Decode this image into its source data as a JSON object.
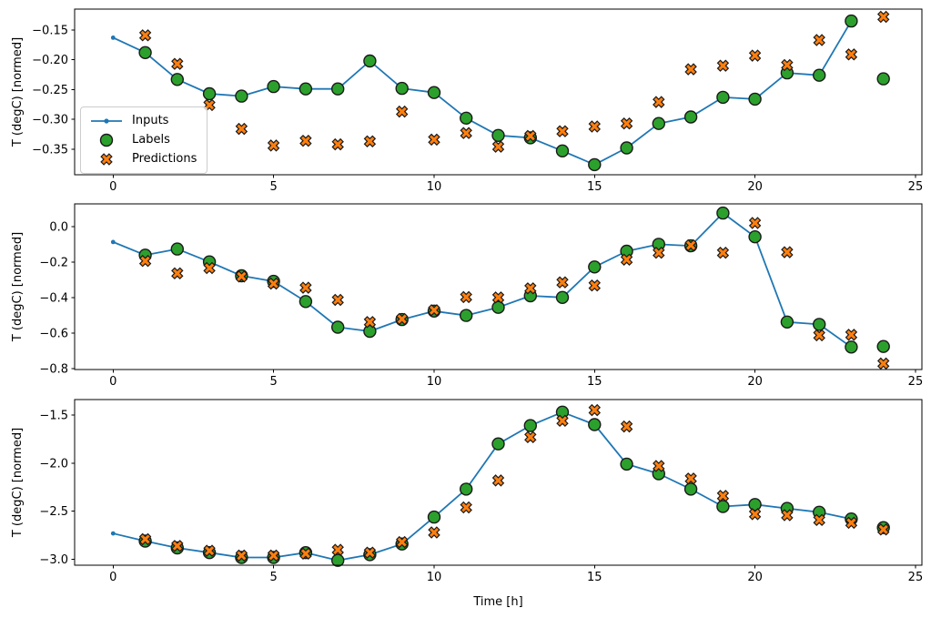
{
  "figure": {
    "background": "#ffffff",
    "xlabel": "Time [h]",
    "ylabel": "T (degC) [normed]",
    "colors": {
      "inputs": "#1f77b4",
      "labels": "#2ca02c",
      "predictions": "#ff7f0e",
      "marker_edge": "#1a1a1a",
      "spine": "#000000",
      "text": "#000000"
    },
    "legend": {
      "items": [
        {
          "label": "Inputs",
          "marker": "line-dot",
          "color": "#1f77b4"
        },
        {
          "label": "Labels",
          "marker": "circle",
          "color": "#2ca02c"
        },
        {
          "label": "Predictions",
          "marker": "x",
          "color": "#ff7f0e"
        }
      ]
    }
  },
  "chart_data": [
    {
      "type": "line",
      "ylabel": "T (degC) [normed]",
      "xlabel": "",
      "xlim": [
        -1.2,
        25.2
      ],
      "ylim": [
        -0.393,
        -0.115
      ],
      "xticks": [
        0,
        5,
        10,
        15,
        20,
        25
      ],
      "xtick_labels": [
        "0",
        "5",
        "10",
        "15",
        "20",
        "25"
      ],
      "yticks": [
        -0.15,
        -0.2,
        -0.25,
        -0.3,
        -0.35
      ],
      "ytick_labels": [
        "−0.15",
        "−0.20",
        "−0.25",
        "−0.30",
        "−0.35"
      ],
      "legend": true,
      "series": [
        {
          "name": "Inputs",
          "marker": "line-dot",
          "color": "#1f77b4",
          "x": [
            0,
            1,
            2,
            3,
            4,
            5,
            6,
            7,
            8,
            9,
            10,
            11,
            12,
            13,
            14,
            15,
            16,
            17,
            18,
            19,
            20,
            21,
            22,
            23
          ],
          "y": [
            -0.163,
            -0.188,
            -0.233,
            -0.257,
            -0.261,
            -0.245,
            -0.249,
            -0.249,
            -0.202,
            -0.248,
            -0.255,
            -0.298,
            -0.327,
            -0.331,
            -0.353,
            -0.376,
            -0.348,
            -0.307,
            -0.296,
            -0.263,
            -0.266,
            -0.222,
            -0.226,
            -0.135
          ]
        },
        {
          "name": "Labels",
          "marker": "circle",
          "color": "#2ca02c",
          "x": [
            1,
            2,
            3,
            4,
            5,
            6,
            7,
            8,
            9,
            10,
            11,
            12,
            13,
            14,
            15,
            16,
            17,
            18,
            19,
            20,
            21,
            22,
            23,
            24
          ],
          "y": [
            -0.188,
            -0.233,
            -0.257,
            -0.261,
            -0.245,
            -0.249,
            -0.249,
            -0.202,
            -0.248,
            -0.255,
            -0.298,
            -0.327,
            -0.331,
            -0.353,
            -0.376,
            -0.348,
            -0.307,
            -0.296,
            -0.263,
            -0.266,
            -0.222,
            -0.226,
            -0.135,
            -0.232
          ]
        },
        {
          "name": "Predictions",
          "marker": "x",
          "color": "#ff7f0e",
          "x": [
            1,
            2,
            3,
            4,
            5,
            6,
            7,
            8,
            9,
            10,
            11,
            12,
            13,
            14,
            15,
            16,
            17,
            18,
            19,
            20,
            21,
            22,
            23,
            24
          ],
          "y": [
            -0.159,
            -0.207,
            -0.276,
            -0.316,
            -0.344,
            -0.336,
            -0.342,
            -0.337,
            -0.287,
            -0.334,
            -0.323,
            -0.346,
            -0.328,
            -0.32,
            -0.312,
            -0.307,
            -0.271,
            -0.216,
            -0.21,
            -0.193,
            -0.209,
            -0.167,
            -0.191,
            -0.128
          ]
        }
      ]
    },
    {
      "type": "line",
      "ylabel": "T (degC) [normed]",
      "xlabel": "",
      "xlim": [
        -1.2,
        25.2
      ],
      "ylim": [
        -0.806,
        0.129
      ],
      "xticks": [
        0,
        5,
        10,
        15,
        20,
        25
      ],
      "xtick_labels": [
        "0",
        "5",
        "10",
        "15",
        "20",
        "25"
      ],
      "yticks": [
        0.0,
        -0.2,
        -0.4,
        -0.6,
        -0.8
      ],
      "ytick_labels": [
        "0.0",
        "−0.2",
        "−0.4",
        "−0.6",
        "−0.8"
      ],
      "legend": false,
      "series": [
        {
          "name": "Inputs",
          "marker": "line-dot",
          "color": "#1f77b4",
          "x": [
            0,
            1,
            2,
            3,
            4,
            5,
            6,
            7,
            8,
            9,
            10,
            11,
            12,
            13,
            14,
            15,
            16,
            17,
            18,
            19,
            20,
            21,
            22,
            23
          ],
          "y": [
            -0.086,
            -0.16,
            -0.126,
            -0.198,
            -0.277,
            -0.308,
            -0.422,
            -0.567,
            -0.59,
            -0.524,
            -0.476,
            -0.501,
            -0.455,
            -0.39,
            -0.399,
            -0.227,
            -0.138,
            -0.099,
            -0.108,
            0.077,
            -0.057,
            -0.538,
            -0.551,
            -0.679
          ]
        },
        {
          "name": "Labels",
          "marker": "circle",
          "color": "#2ca02c",
          "x": [
            1,
            2,
            3,
            4,
            5,
            6,
            7,
            8,
            9,
            10,
            11,
            12,
            13,
            14,
            15,
            16,
            17,
            18,
            19,
            20,
            21,
            22,
            23,
            24
          ],
          "y": [
            -0.16,
            -0.126,
            -0.198,
            -0.277,
            -0.308,
            -0.422,
            -0.567,
            -0.59,
            -0.524,
            -0.476,
            -0.501,
            -0.455,
            -0.39,
            -0.399,
            -0.227,
            -0.138,
            -0.099,
            -0.108,
            0.077,
            -0.057,
            -0.538,
            -0.551,
            -0.679,
            -0.676
          ]
        },
        {
          "name": "Predictions",
          "marker": "x",
          "color": "#ff7f0e",
          "x": [
            1,
            2,
            3,
            4,
            5,
            6,
            7,
            8,
            9,
            10,
            11,
            12,
            13,
            14,
            15,
            16,
            17,
            18,
            19,
            20,
            21,
            22,
            23,
            24
          ],
          "y": [
            -0.193,
            -0.263,
            -0.233,
            -0.281,
            -0.321,
            -0.344,
            -0.413,
            -0.538,
            -0.521,
            -0.471,
            -0.397,
            -0.399,
            -0.348,
            -0.314,
            -0.332,
            -0.186,
            -0.147,
            -0.105,
            -0.147,
            0.021,
            -0.144,
            -0.613,
            -0.61,
            -0.772
          ]
        }
      ]
    },
    {
      "type": "line",
      "ylabel": "T (degC) [normed]",
      "xlabel": "Time [h]",
      "xlim": [
        -1.2,
        25.2
      ],
      "ylim": [
        -3.06,
        -1.34
      ],
      "xticks": [
        0,
        5,
        10,
        15,
        20,
        25
      ],
      "xtick_labels": [
        "0",
        "5",
        "10",
        "15",
        "20",
        "25"
      ],
      "yticks": [
        -1.5,
        -2.0,
        -2.5,
        -3.0
      ],
      "ytick_labels": [
        "−1.5",
        "−2.0",
        "−2.5",
        "−3.0"
      ],
      "legend": false,
      "series": [
        {
          "name": "Inputs",
          "marker": "line-dot",
          "color": "#1f77b4",
          "x": [
            0,
            1,
            2,
            3,
            4,
            5,
            6,
            7,
            8,
            9,
            10,
            11,
            12,
            13,
            14,
            15,
            16,
            17,
            18,
            19,
            20,
            21,
            22,
            23
          ],
          "y": [
            -2.73,
            -2.81,
            -2.88,
            -2.93,
            -2.98,
            -2.98,
            -2.93,
            -3.01,
            -2.95,
            -2.84,
            -2.56,
            -2.27,
            -1.8,
            -1.61,
            -1.47,
            -1.6,
            -2.01,
            -2.11,
            -2.27,
            -2.45,
            -2.43,
            -2.47,
            -2.51,
            -2.58
          ]
        },
        {
          "name": "Labels",
          "marker": "circle",
          "color": "#2ca02c",
          "x": [
            1,
            2,
            3,
            4,
            5,
            6,
            7,
            8,
            9,
            10,
            11,
            12,
            13,
            14,
            15,
            16,
            17,
            18,
            19,
            20,
            21,
            22,
            23,
            24
          ],
          "y": [
            -2.81,
            -2.88,
            -2.93,
            -2.98,
            -2.98,
            -2.93,
            -3.01,
            -2.95,
            -2.84,
            -2.56,
            -2.27,
            -1.8,
            -1.61,
            -1.47,
            -1.6,
            -2.01,
            -2.11,
            -2.27,
            -2.45,
            -2.43,
            -2.47,
            -2.51,
            -2.58,
            -2.67
          ]
        },
        {
          "name": "Predictions",
          "marker": "x",
          "color": "#ff7f0e",
          "x": [
            1,
            2,
            3,
            4,
            5,
            6,
            7,
            8,
            9,
            10,
            11,
            12,
            13,
            14,
            15,
            16,
            17,
            18,
            19,
            20,
            21,
            22,
            23,
            24
          ],
          "y": [
            -2.79,
            -2.86,
            -2.91,
            -2.96,
            -2.96,
            -2.94,
            -2.9,
            -2.93,
            -2.82,
            -2.72,
            -2.46,
            -2.18,
            -1.73,
            -1.56,
            -1.45,
            -1.62,
            -2.03,
            -2.16,
            -2.34,
            -2.53,
            -2.54,
            -2.59,
            -2.62,
            -2.69
          ]
        }
      ]
    }
  ]
}
